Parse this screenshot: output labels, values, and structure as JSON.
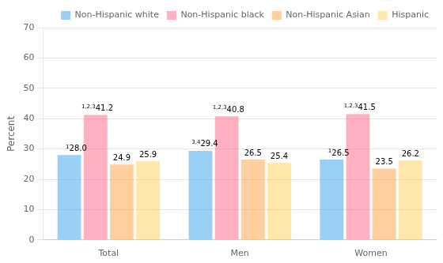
{
  "chart_data": {
    "type": "bar",
    "categories": [
      "Total",
      "Men",
      "Women"
    ],
    "series": [
      {
        "name": "Non-Hispanic white",
        "values": [
          28.0,
          29.4,
          26.5
        ],
        "value_labels": [
          "28.0",
          "29.4",
          "26.5"
        ],
        "superscripts": [
          "1",
          "3,4",
          "1"
        ]
      },
      {
        "name": "Non-Hispanic black",
        "values": [
          41.2,
          40.8,
          41.5
        ],
        "value_labels": [
          "41.2",
          "40.8",
          "41.5"
        ],
        "superscripts": [
          "1,2,3",
          "1,2,3",
          "1,2,3"
        ]
      },
      {
        "name": "Non-Hispanic Asian",
        "values": [
          24.9,
          26.5,
          23.5
        ],
        "value_labels": [
          "24.9",
          "26.5",
          "23.5"
        ],
        "superscripts": [
          null,
          null,
          null
        ]
      },
      {
        "name": "Hispanic",
        "values": [
          25.9,
          25.4,
          26.2
        ],
        "value_labels": [
          "25.9",
          "25.4",
          "26.2"
        ],
        "superscripts": [
          null,
          null,
          null
        ]
      }
    ],
    "ylabel": "Percent",
    "ylim": [
      0,
      70
    ],
    "yticks": [
      0,
      10,
      20,
      30,
      40,
      50,
      60,
      70
    ],
    "grid": true,
    "legend": "upper right",
    "data_labels": true
  }
}
